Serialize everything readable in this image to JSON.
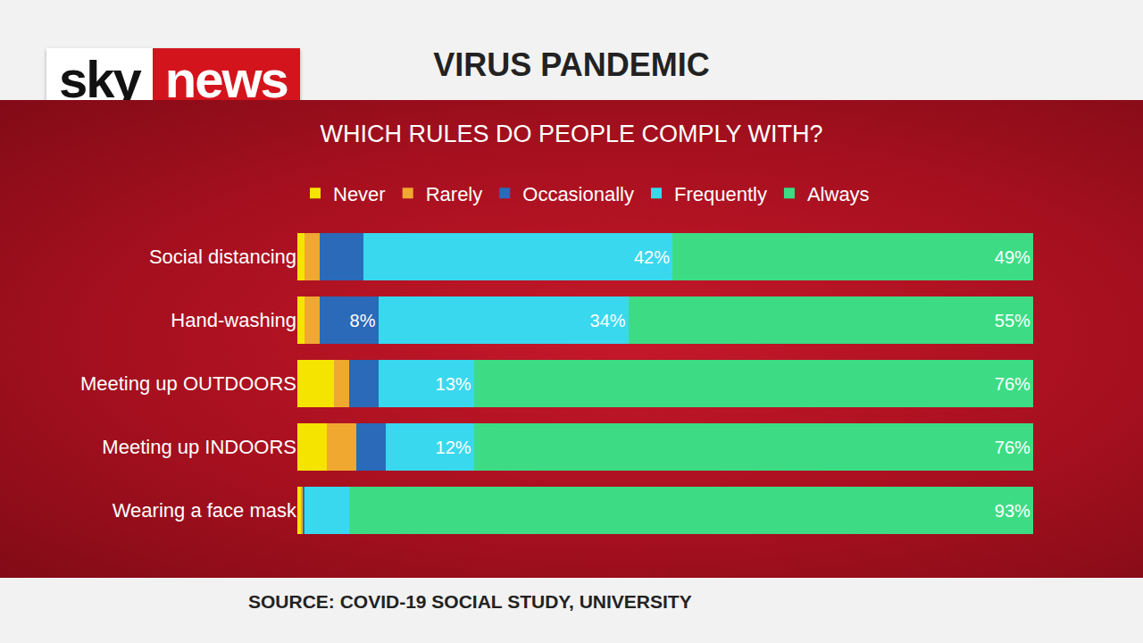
{
  "header": {
    "logo": [
      "sky",
      "news"
    ],
    "title": "VIRUS PANDEMIC"
  },
  "chart_data": {
    "type": "bar",
    "title": "WHICH RULES DO PEOPLE COMPLY WITH?",
    "source": "SOURCE: COVID-19 SOCIAL STUDY, UNIVERSITY",
    "orientation": "horizontal",
    "stacked": true,
    "data_labels": true,
    "tick_labels": "y",
    "grid": false,
    "legend": "top",
    "xlim": [
      0,
      100
    ],
    "categories": [
      "Social distancing",
      "Hand-washing",
      "Meeting up OUTDOORS",
      "Meeting up INDOORS",
      "Wearing a face mask"
    ],
    "series": [
      {
        "name": "Never",
        "color": "#f5e400",
        "values": [
          1,
          1,
          5,
          4,
          0.5
        ],
        "value_labels": [
          null,
          null,
          null,
          null,
          null
        ]
      },
      {
        "name": "Rarely",
        "color": "#f0a830",
        "values": [
          2,
          2,
          2,
          4,
          0.2
        ],
        "value_labels": [
          null,
          null,
          null,
          null,
          null
        ]
      },
      {
        "name": "Occasionally",
        "color": "#2a6ab8",
        "values": [
          6,
          8,
          4,
          4,
          0.3
        ],
        "value_labels": [
          null,
          "8%",
          null,
          null,
          null
        ]
      },
      {
        "name": "Frequently",
        "color": "#3ad8ee",
        "values": [
          42,
          34,
          13,
          12,
          6
        ],
        "value_labels": [
          "42%",
          "34%",
          "13%",
          "12%",
          null
        ]
      },
      {
        "name": "Always",
        "color": "#3ddc84",
        "values": [
          49,
          55,
          76,
          76,
          93
        ],
        "value_labels": [
          "49%",
          "55%",
          "76%",
          "76%",
          "93%"
        ]
      }
    ]
  }
}
